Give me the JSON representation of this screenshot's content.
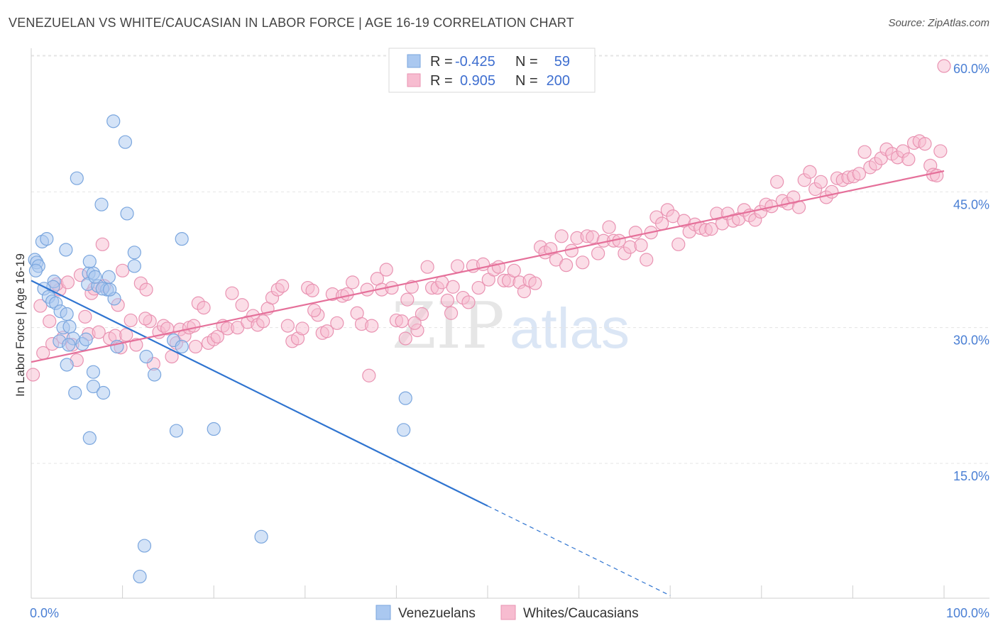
{
  "title": "VENEZUELAN VS WHITE/CAUCASIAN IN LABOR FORCE | AGE 16-19 CORRELATION CHART",
  "source": "Source: ZipAtlas.com",
  "watermark": {
    "part1": "ZIP",
    "part2": "atlas"
  },
  "legend_top": {
    "rows": [
      {
        "r_label": "R =",
        "r_value": "-0.425",
        "n_label": "N =",
        "n_value": "59",
        "color": "#aac8f0",
        "stroke": "#7aa6de"
      },
      {
        "r_label": "R =",
        "r_value": "0.905",
        "n_label": "N =",
        "n_value": "200",
        "color": "#f7bcd0",
        "stroke": "#e993b2"
      }
    ]
  },
  "legend_bottom": [
    {
      "label": "Venezuelans",
      "color": "#aac8f0",
      "stroke": "#7aa6de"
    },
    {
      "label": "Whites/Caucasians",
      "color": "#f7bcd0",
      "stroke": "#e993b2"
    }
  ],
  "chart_data": {
    "type": "scatter",
    "title": "VENEZUELAN VS WHITE/CAUCASIAN IN LABOR FORCE | AGE 16-19 CORRELATION CHART",
    "xlabel": "",
    "ylabel": "In Labor Force | Age 16-19",
    "xlim": [
      0,
      100
    ],
    "ylim": [
      0,
      65
    ],
    "x_tick_labels": [
      {
        "value": 0,
        "label": "0.0%"
      },
      {
        "value": 100,
        "label": "100.0%"
      }
    ],
    "y_tick_labels": [
      {
        "value": 15,
        "label": "15.0%"
      },
      {
        "value": 30,
        "label": "30.0%"
      },
      {
        "value": 45,
        "label": "45.0%"
      },
      {
        "value": 60,
        "label": "60.0%"
      }
    ],
    "grid": true,
    "legend_position": "top-center",
    "series": [
      {
        "name": "Venezuelans",
        "color": "#aac8f0",
        "stroke": "#7aa6de",
        "line_color": "#2f74d0",
        "trend": {
          "x0": 0,
          "y0": 35.2,
          "x1": 50,
          "y1": 10.3,
          "dash_x1": 70,
          "dash_y1": 0.4
        },
        "points": [
          [
            0.4,
            37.5
          ],
          [
            0.6,
            37.2
          ],
          [
            0.8,
            36.8
          ],
          [
            0.5,
            36.3
          ],
          [
            1.2,
            39.5
          ],
          [
            1.7,
            39.8
          ],
          [
            2.5,
            35.1
          ],
          [
            2.4,
            34.5
          ],
          [
            1.4,
            34.3
          ],
          [
            1.9,
            33.4
          ],
          [
            2.3,
            32.9
          ],
          [
            2.7,
            32.7
          ],
          [
            3.2,
            31.8
          ],
          [
            3.9,
            31.5
          ],
          [
            3.5,
            30.0
          ],
          [
            4.2,
            30.1
          ],
          [
            3.1,
            28.5
          ],
          [
            4.6,
            28.8
          ],
          [
            4.1,
            28.1
          ],
          [
            5.6,
            28.2
          ],
          [
            6.0,
            28.7
          ],
          [
            3.9,
            25.9
          ],
          [
            4.8,
            22.8
          ],
          [
            6.8,
            25.1
          ],
          [
            6.8,
            23.5
          ],
          [
            7.9,
            22.8
          ],
          [
            6.4,
            17.8
          ],
          [
            5.0,
            46.5
          ],
          [
            7.7,
            43.6
          ],
          [
            9.0,
            52.8
          ],
          [
            10.3,
            50.5
          ],
          [
            10.5,
            42.6
          ],
          [
            6.3,
            36.0
          ],
          [
            6.8,
            36.0
          ],
          [
            6.2,
            34.8
          ],
          [
            7.3,
            34.6
          ],
          [
            7.0,
            35.6
          ],
          [
            8.5,
            35.6
          ],
          [
            8.3,
            34.2
          ],
          [
            9.1,
            33.2
          ],
          [
            7.8,
            34.3
          ],
          [
            9.4,
            27.9
          ],
          [
            11.3,
            36.8
          ],
          [
            11.3,
            38.3
          ],
          [
            3.8,
            38.6
          ],
          [
            6.4,
            37.3
          ],
          [
            12.6,
            26.8
          ],
          [
            13.5,
            24.8
          ],
          [
            15.6,
            28.6
          ],
          [
            16.5,
            27.9
          ],
          [
            16.5,
            39.8
          ],
          [
            15.9,
            18.6
          ],
          [
            20.0,
            18.8
          ],
          [
            41.0,
            22.2
          ],
          [
            40.8,
            18.7
          ],
          [
            12.4,
            5.9
          ],
          [
            11.9,
            2.5
          ],
          [
            25.2,
            6.9
          ],
          [
            8.6,
            34.2
          ]
        ]
      },
      {
        "name": "Whites/Caucasians",
        "color": "#f7bcd0",
        "stroke": "#e993b2",
        "line_color": "#e5709a",
        "trend": {
          "x0": 0,
          "y0": 26.2,
          "x1": 100,
          "y1": 47.3
        },
        "points": [
          [
            0.2,
            24.8
          ],
          [
            1.0,
            32.4
          ],
          [
            1.3,
            27.2
          ],
          [
            2.0,
            30.7
          ],
          [
            2.3,
            28.2
          ],
          [
            3.1,
            34.2
          ],
          [
            3.5,
            28.9
          ],
          [
            4.5,
            28.1
          ],
          [
            5.0,
            26.4
          ],
          [
            5.4,
            35.8
          ],
          [
            5.9,
            31.2
          ],
          [
            6.3,
            29.3
          ],
          [
            6.6,
            33.8
          ],
          [
            6.9,
            34.3
          ],
          [
            7.4,
            29.5
          ],
          [
            7.8,
            39.2
          ],
          [
            8.0,
            34.6
          ],
          [
            8.6,
            28.8
          ],
          [
            9.2,
            29.1
          ],
          [
            9.5,
            32.5
          ],
          [
            10.0,
            36.3
          ],
          [
            10.4,
            29.2
          ],
          [
            10.9,
            30.8
          ],
          [
            11.5,
            28.1
          ],
          [
            12.0,
            34.9
          ],
          [
            12.6,
            34.2
          ],
          [
            13.0,
            30.7
          ],
          [
            13.4,
            26.0
          ],
          [
            14.0,
            29.5
          ],
          [
            14.5,
            30.2
          ],
          [
            14.9,
            29.9
          ],
          [
            15.4,
            26.8
          ],
          [
            15.9,
            28.3
          ],
          [
            16.3,
            29.8
          ],
          [
            16.8,
            29.1
          ],
          [
            17.3,
            30.0
          ],
          [
            17.8,
            30.2
          ],
          [
            18.3,
            32.7
          ],
          [
            18.9,
            32.2
          ],
          [
            19.4,
            28.3
          ],
          [
            20.0,
            28.7
          ],
          [
            20.4,
            29.0
          ],
          [
            21.0,
            30.2
          ],
          [
            21.5,
            29.9
          ],
          [
            22.0,
            33.8
          ],
          [
            22.6,
            30.0
          ],
          [
            23.1,
            32.5
          ],
          [
            23.7,
            30.6
          ],
          [
            24.3,
            31.3
          ],
          [
            24.8,
            30.3
          ],
          [
            25.4,
            30.7
          ],
          [
            25.9,
            32.1
          ],
          [
            26.4,
            33.3
          ],
          [
            27.0,
            34.2
          ],
          [
            27.5,
            34.6
          ],
          [
            28.1,
            30.2
          ],
          [
            28.6,
            28.5
          ],
          [
            29.2,
            28.8
          ],
          [
            29.7,
            29.9
          ],
          [
            30.3,
            34.4
          ],
          [
            30.8,
            34.1
          ],
          [
            31.4,
            31.4
          ],
          [
            31.9,
            29.4
          ],
          [
            32.4,
            29.6
          ],
          [
            33.0,
            33.7
          ],
          [
            33.5,
            30.5
          ],
          [
            34.1,
            33.5
          ],
          [
            34.6,
            33.7
          ],
          [
            35.2,
            35.0
          ],
          [
            35.7,
            31.6
          ],
          [
            36.2,
            30.4
          ],
          [
            36.8,
            34.2
          ],
          [
            37.3,
            30.2
          ],
          [
            37.9,
            35.4
          ],
          [
            38.4,
            34.2
          ],
          [
            38.9,
            36.4
          ],
          [
            39.5,
            34.4
          ],
          [
            40.0,
            30.8
          ],
          [
            40.6,
            30.7
          ],
          [
            41.2,
            33.1
          ],
          [
            41.7,
            34.5
          ],
          [
            42.3,
            29.7
          ],
          [
            42.8,
            31.5
          ],
          [
            43.4,
            36.7
          ],
          [
            43.9,
            34.4
          ],
          [
            44.5,
            34.4
          ],
          [
            45.0,
            35.0
          ],
          [
            45.6,
            33.0
          ],
          [
            46.2,
            34.5
          ],
          [
            46.7,
            36.8
          ],
          [
            47.3,
            33.3
          ],
          [
            47.9,
            32.8
          ],
          [
            48.4,
            36.8
          ],
          [
            49.0,
            34.4
          ],
          [
            49.5,
            37.0
          ],
          [
            50.1,
            35.3
          ],
          [
            50.7,
            36.4
          ],
          [
            51.2,
            36.7
          ],
          [
            51.8,
            35.2
          ],
          [
            52.3,
            35.2
          ],
          [
            52.9,
            36.3
          ],
          [
            53.5,
            35.0
          ],
          [
            54.0,
            34.0
          ],
          [
            54.6,
            35.2
          ],
          [
            55.2,
            34.9
          ],
          [
            55.8,
            38.9
          ],
          [
            56.3,
            38.3
          ],
          [
            56.9,
            38.7
          ],
          [
            57.5,
            37.5
          ],
          [
            58.1,
            40.1
          ],
          [
            58.6,
            36.9
          ],
          [
            59.2,
            38.5
          ],
          [
            59.8,
            39.9
          ],
          [
            60.4,
            37.2
          ],
          [
            60.9,
            40.1
          ],
          [
            61.5,
            40.0
          ],
          [
            62.1,
            38.2
          ],
          [
            62.7,
            39.6
          ],
          [
            63.3,
            41.1
          ],
          [
            63.8,
            39.6
          ],
          [
            64.4,
            39.6
          ],
          [
            65.0,
            38.2
          ],
          [
            65.6,
            38.9
          ],
          [
            66.2,
            40.5
          ],
          [
            66.8,
            39.1
          ],
          [
            67.4,
            37.5
          ],
          [
            67.9,
            40.5
          ],
          [
            68.5,
            42.2
          ],
          [
            69.1,
            41.5
          ],
          [
            69.7,
            43.0
          ],
          [
            70.3,
            42.3
          ],
          [
            70.9,
            39.2
          ],
          [
            71.5,
            41.8
          ],
          [
            72.1,
            40.6
          ],
          [
            72.7,
            41.4
          ],
          [
            73.3,
            41.0
          ],
          [
            73.9,
            40.8
          ],
          [
            74.5,
            40.9
          ],
          [
            75.1,
            42.6
          ],
          [
            75.7,
            41.5
          ],
          [
            76.3,
            42.6
          ],
          [
            76.9,
            41.8
          ],
          [
            77.5,
            42.0
          ],
          [
            78.1,
            43.0
          ],
          [
            78.7,
            42.4
          ],
          [
            79.3,
            41.9
          ],
          [
            79.9,
            42.8
          ],
          [
            80.5,
            43.6
          ],
          [
            81.1,
            43.4
          ],
          [
            81.7,
            46.1
          ],
          [
            82.3,
            44.0
          ],
          [
            82.9,
            43.7
          ],
          [
            83.5,
            44.4
          ],
          [
            84.1,
            43.3
          ],
          [
            84.7,
            46.3
          ],
          [
            85.3,
            47.2
          ],
          [
            85.9,
            45.3
          ],
          [
            86.5,
            46.1
          ],
          [
            87.1,
            44.4
          ],
          [
            87.7,
            45.0
          ],
          [
            88.3,
            46.5
          ],
          [
            88.9,
            46.3
          ],
          [
            89.5,
            46.6
          ],
          [
            90.1,
            46.7
          ],
          [
            90.7,
            47.0
          ],
          [
            91.3,
            49.4
          ],
          [
            91.9,
            47.7
          ],
          [
            92.5,
            48.1
          ],
          [
            93.1,
            48.7
          ],
          [
            93.7,
            49.7
          ],
          [
            94.3,
            49.2
          ],
          [
            94.9,
            48.8
          ],
          [
            95.5,
            49.5
          ],
          [
            96.1,
            48.6
          ],
          [
            96.7,
            50.4
          ],
          [
            97.3,
            50.6
          ],
          [
            97.9,
            50.3
          ],
          [
            98.5,
            47.9
          ],
          [
            98.8,
            46.9
          ],
          [
            99.2,
            46.8
          ],
          [
            99.6,
            49.5
          ],
          [
            100.0,
            58.9
          ],
          [
            2.8,
            34.8
          ],
          [
            4.0,
            35.0
          ],
          [
            9.8,
            27.8
          ],
          [
            12.5,
            31.0
          ],
          [
            18.0,
            27.9
          ],
          [
            37.0,
            24.7
          ],
          [
            41.0,
            28.8
          ],
          [
            42.0,
            30.5
          ],
          [
            31.0,
            31.9
          ],
          [
            46.0,
            31.6
          ]
        ]
      }
    ]
  }
}
